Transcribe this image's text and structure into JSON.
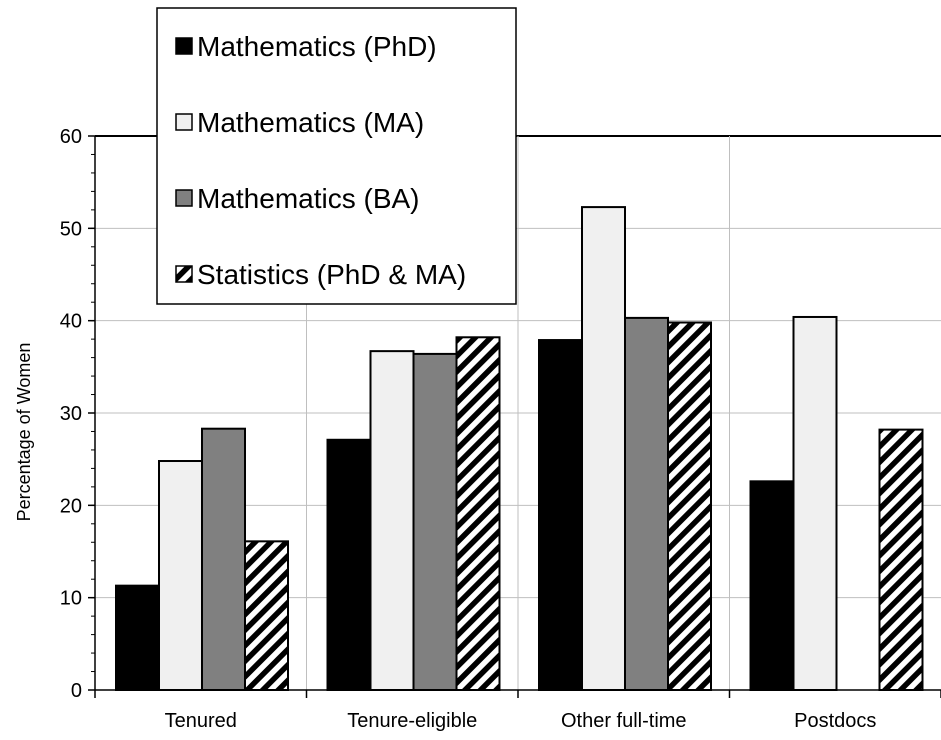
{
  "chart_data": {
    "type": "bar",
    "title": "",
    "xlabel": "",
    "ylabel": "Percentage of Women",
    "ylim": [
      0,
      60
    ],
    "yticks": [
      0,
      10,
      20,
      30,
      40,
      50,
      60
    ],
    "categories": [
      "Tenured",
      "Tenure-eligible",
      "Other full-time",
      "Postdocs"
    ],
    "series": [
      {
        "name": "Mathematics (PhD)",
        "values": [
          11.3,
          27.1,
          37.9,
          22.6
        ],
        "color": "#000000",
        "pattern": "solid"
      },
      {
        "name": "Mathematics (MA)",
        "values": [
          24.8,
          36.7,
          52.3,
          40.4
        ],
        "color": "#f0f0f0",
        "pattern": "solid"
      },
      {
        "name": "Mathematics (BA)",
        "values": [
          28.3,
          36.4,
          40.3,
          null
        ],
        "color": "#808080",
        "pattern": "solid"
      },
      {
        "name": "Statistics (PhD & MA)",
        "values": [
          16.1,
          38.2,
          39.8,
          28.2
        ],
        "color": "#000000",
        "pattern": "diagonal-stripes"
      }
    ],
    "grid": true,
    "legend_position": "top-left"
  }
}
